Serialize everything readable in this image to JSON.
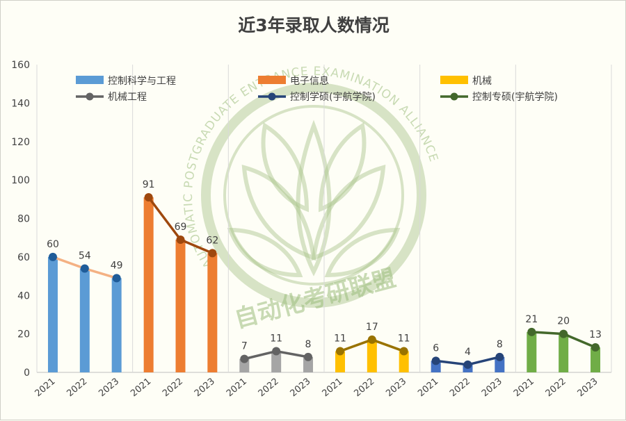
{
  "chart_data": {
    "type": "bar",
    "title": "近3年录取人数情况",
    "ylim": [
      0,
      160
    ],
    "yticks": [
      0,
      20,
      40,
      60,
      80,
      100,
      120,
      140,
      160
    ],
    "grid": "vertical separators between groups",
    "legend_position": "top",
    "groups": [
      {
        "name": "控制科学与工程",
        "years": [
          "2021",
          "2022",
          "2023"
        ],
        "values": [
          60,
          54,
          49
        ],
        "bar_color": "#5b9bd5",
        "line_color": "#f4b183",
        "marker_color": "#1f5c99"
      },
      {
        "name": "电子信息",
        "years": [
          "2021",
          "2022",
          "2023"
        ],
        "values": [
          91,
          69,
          62
        ],
        "bar_color": "#ed7d31",
        "line_color": "#9e480e",
        "marker_color": "#9e480e"
      },
      {
        "name": "机械",
        "years": [
          "2021",
          "2022",
          "2023"
        ],
        "values": [
          7,
          11,
          8
        ],
        "bar_color": "#a5a5a5",
        "line_color": "#636363",
        "marker_color": "#636363"
      },
      {
        "name": "机械工程",
        "years": [
          "2021",
          "2022",
          "2023"
        ],
        "values": [
          11,
          17,
          11
        ],
        "bar_color": "#ffc000",
        "line_color": "#997300",
        "marker_color": "#997300"
      },
      {
        "name": "控制学硕(宇航学院)",
        "years": [
          "2021",
          "2022",
          "2023"
        ],
        "values": [
          6,
          4,
          8
        ],
        "bar_color": "#4472c4",
        "line_color": "#264478",
        "marker_color": "#264478"
      },
      {
        "name": "控制专硕(宇航学院)",
        "years": [
          "2021",
          "2022",
          "2023"
        ],
        "values": [
          21,
          20,
          13
        ],
        "bar_color": "#70ad47",
        "line_color": "#43682b",
        "marker_color": "#43682b"
      }
    ],
    "legend": [
      {
        "label": "控制科学与工程",
        "kind": "bar",
        "color": "#5b9bd5"
      },
      {
        "label": "电子信息",
        "kind": "bar",
        "color": "#ed7d31"
      },
      {
        "label": "机械",
        "kind": "bar",
        "color": "#ffc000"
      },
      {
        "label": "机械工程",
        "kind": "line",
        "color": "#636363"
      },
      {
        "label": "控制学硕(宇航学院)",
        "kind": "line",
        "color": "#264478"
      },
      {
        "label": "控制专硕(宇航学院)",
        "kind": "line",
        "color": "#43682b"
      }
    ]
  },
  "watermark": {
    "ring_text": "AUTOMATIC POSTGRADUATE ENTRANCE EXAMINATION ALLIANCE",
    "cn_text": "自动化考研联盟"
  }
}
